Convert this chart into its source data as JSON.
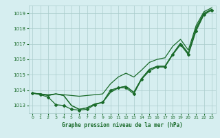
{
  "background_color": "#d6eef0",
  "grid_color": "#aacccc",
  "line_color": "#1a6b2a",
  "title": "Graphe pression niveau de la mer (hPa)",
  "xlim": [
    -0.5,
    23.5
  ],
  "ylim": [
    1012.5,
    1019.5
  ],
  "yticks": [
    1013,
    1014,
    1015,
    1016,
    1017,
    1018,
    1019
  ],
  "xticks": [
    0,
    1,
    2,
    3,
    4,
    5,
    6,
    7,
    8,
    9,
    10,
    11,
    12,
    13,
    14,
    15,
    16,
    17,
    18,
    19,
    20,
    21,
    22,
    23
  ],
  "series_smooth": [
    1013.8,
    1013.75,
    1013.7,
    1013.75,
    1013.7,
    1013.65,
    1013.6,
    1013.65,
    1013.7,
    1013.75,
    1014.4,
    1014.85,
    1015.1,
    1014.85,
    1015.3,
    1015.8,
    1016.0,
    1016.1,
    1016.85,
    1017.3,
    1016.6,
    1018.2,
    1019.1,
    1019.35
  ],
  "series_mid1": [
    1013.8,
    1013.75,
    1013.65,
    1013.75,
    1013.65,
    1013.0,
    1012.75,
    1012.85,
    1013.1,
    1013.2,
    1013.85,
    1014.15,
    1014.25,
    1013.85,
    1014.75,
    1015.35,
    1015.55,
    1015.55,
    1016.35,
    1017.05,
    1016.4,
    1018.05,
    1019.0,
    1019.25
  ],
  "series_mid2": [
    1013.8,
    1013.75,
    1013.65,
    1013.75,
    1013.65,
    1013.0,
    1012.75,
    1012.85,
    1013.1,
    1013.2,
    1013.85,
    1014.15,
    1014.25,
    1013.85,
    1014.75,
    1015.35,
    1015.55,
    1015.55,
    1016.35,
    1017.05,
    1016.35,
    1017.95,
    1018.95,
    1019.25
  ],
  "series_marker": [
    1013.8,
    1013.7,
    1013.55,
    1013.05,
    1013.0,
    1012.75,
    1012.7,
    1012.75,
    1013.05,
    1013.2,
    1014.0,
    1014.15,
    1014.15,
    1013.75,
    1014.7,
    1015.25,
    1015.5,
    1015.5,
    1016.3,
    1016.95,
    1016.3,
    1017.85,
    1018.9,
    1019.2
  ]
}
